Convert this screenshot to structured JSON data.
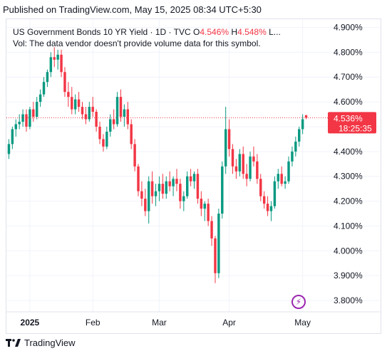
{
  "header": {
    "published": "Published on TradingView.com, May 15, 2025 08:34 UTC+5:30"
  },
  "legend": {
    "title": "US Government Bonds 10 YR Yield · 1D · TVC",
    "open_label": "O",
    "open_value": "4.546%",
    "high_label": "H",
    "high_value": "4.548%",
    "rest": "L...",
    "volume_note": "Vol: The data vendor doesn't provide volume data for this symbol."
  },
  "price_tag": {
    "price": "4.536%",
    "countdown": "18:25:35"
  },
  "footer": {
    "logo_text": "TradingView"
  },
  "colors": {
    "up": "#089981",
    "down": "#f23645",
    "grid": "#f0f3fa",
    "axis_text": "#131722",
    "price_line": "#f23645",
    "accent": "#9c27b0"
  },
  "chart_data": {
    "type": "candlestick",
    "title": "US Government Bonds 10 YR Yield · 1D · TVC",
    "ylim": [
      3.76,
      4.93
    ],
    "y_ticks": [
      "4.900%",
      "4.800%",
      "4.700%",
      "4.600%",
      "4.500%",
      "4.400%",
      "4.300%",
      "4.200%",
      "4.100%",
      "4.000%",
      "3.900%",
      "3.800%"
    ],
    "y_tick_values": [
      4.9,
      4.8,
      4.7,
      4.6,
      4.5,
      4.4,
      4.3,
      4.2,
      4.1,
      4.0,
      3.9,
      3.8
    ],
    "x_labels": [
      "2025",
      "Feb",
      "Mar",
      "Apr",
      "May"
    ],
    "x_label_indices": [
      6,
      24,
      43,
      63,
      84
    ],
    "candles": [
      [
        4.39,
        4.45,
        4.37,
        4.43
      ],
      [
        4.43,
        4.5,
        4.41,
        4.49
      ],
      [
        4.49,
        4.53,
        4.46,
        4.51
      ],
      [
        4.51,
        4.55,
        4.49,
        4.52
      ],
      [
        4.52,
        4.57,
        4.5,
        4.55
      ],
      [
        4.55,
        4.57,
        4.48,
        4.5
      ],
      [
        4.5,
        4.58,
        4.49,
        4.57
      ],
      [
        4.57,
        4.6,
        4.52,
        4.54
      ],
      [
        4.54,
        4.62,
        4.53,
        4.6
      ],
      [
        4.6,
        4.65,
        4.58,
        4.63
      ],
      [
        4.63,
        4.7,
        4.62,
        4.68
      ],
      [
        4.68,
        4.73,
        4.66,
        4.72
      ],
      [
        4.72,
        4.8,
        4.7,
        4.78
      ],
      [
        4.78,
        4.82,
        4.74,
        4.77
      ],
      [
        4.77,
        4.81,
        4.73,
        4.79
      ],
      [
        4.79,
        4.81,
        4.7,
        4.72
      ],
      [
        4.72,
        4.74,
        4.62,
        4.64
      ],
      [
        4.64,
        4.68,
        4.58,
        4.62
      ],
      [
        4.62,
        4.66,
        4.55,
        4.57
      ],
      [
        4.57,
        4.63,
        4.55,
        4.61
      ],
      [
        4.61,
        4.64,
        4.56,
        4.58
      ],
      [
        4.58,
        4.6,
        4.53,
        4.55
      ],
      [
        4.55,
        4.58,
        4.51,
        4.53
      ],
      [
        4.53,
        4.6,
        4.52,
        4.58
      ],
      [
        4.58,
        4.62,
        4.54,
        4.56
      ],
      [
        4.56,
        4.57,
        4.48,
        4.5
      ],
      [
        4.5,
        4.52,
        4.43,
        4.45
      ],
      [
        4.45,
        4.47,
        4.4,
        4.42
      ],
      [
        4.42,
        4.5,
        4.41,
        4.48
      ],
      [
        4.48,
        4.55,
        4.46,
        4.53
      ],
      [
        4.53,
        4.57,
        4.49,
        4.51
      ],
      [
        4.51,
        4.64,
        4.5,
        4.62
      ],
      [
        4.62,
        4.65,
        4.52,
        4.54
      ],
      [
        4.54,
        4.59,
        4.5,
        4.57
      ],
      [
        4.57,
        4.6,
        4.49,
        4.51
      ],
      [
        4.51,
        4.53,
        4.41,
        4.43
      ],
      [
        4.43,
        4.45,
        4.32,
        4.34
      ],
      [
        4.34,
        4.35,
        4.22,
        4.24
      ],
      [
        4.24,
        4.28,
        4.18,
        4.21
      ],
      [
        4.21,
        4.25,
        4.14,
        4.16
      ],
      [
        4.16,
        4.3,
        4.11,
        4.28
      ],
      [
        4.28,
        4.32,
        4.19,
        4.22
      ],
      [
        4.22,
        4.27,
        4.18,
        4.24
      ],
      [
        4.24,
        4.3,
        4.2,
        4.27
      ],
      [
        4.27,
        4.31,
        4.21,
        4.23
      ],
      [
        4.23,
        4.3,
        4.21,
        4.28
      ],
      [
        4.28,
        4.32,
        4.24,
        4.26
      ],
      [
        4.26,
        4.3,
        4.22,
        4.29
      ],
      [
        4.29,
        4.33,
        4.24,
        4.27
      ],
      [
        4.27,
        4.29,
        4.17,
        4.2
      ],
      [
        4.2,
        4.24,
        4.16,
        4.22
      ],
      [
        4.22,
        4.32,
        4.21,
        4.3
      ],
      [
        4.3,
        4.33,
        4.26,
        4.28
      ],
      [
        4.28,
        4.32,
        4.25,
        4.31
      ],
      [
        4.31,
        4.33,
        4.19,
        4.21
      ],
      [
        4.21,
        4.24,
        4.14,
        4.17
      ],
      [
        4.17,
        4.2,
        4.12,
        4.19
      ],
      [
        4.19,
        4.21,
        4.1,
        4.12
      ],
      [
        4.12,
        4.14,
        4.02,
        4.05
      ],
      [
        4.05,
        4.06,
        3.87,
        3.91
      ],
      [
        3.91,
        4.17,
        3.89,
        4.15
      ],
      [
        4.15,
        4.36,
        4.13,
        4.34
      ],
      [
        4.34,
        4.58,
        4.31,
        4.49
      ],
      [
        4.49,
        4.53,
        4.38,
        4.41
      ],
      [
        4.41,
        4.43,
        4.31,
        4.34
      ],
      [
        4.34,
        4.37,
        4.29,
        4.32
      ],
      [
        4.32,
        4.41,
        4.3,
        4.39
      ],
      [
        4.39,
        4.42,
        4.29,
        4.31
      ],
      [
        4.31,
        4.35,
        4.26,
        4.29
      ],
      [
        4.29,
        4.4,
        4.28,
        4.38
      ],
      [
        4.38,
        4.42,
        4.34,
        4.36
      ],
      [
        4.36,
        4.39,
        4.27,
        4.29
      ],
      [
        4.29,
        4.31,
        4.2,
        4.22
      ],
      [
        4.22,
        4.24,
        4.17,
        4.19
      ],
      [
        4.19,
        4.22,
        4.14,
        4.16
      ],
      [
        4.16,
        4.2,
        4.12,
        4.18
      ],
      [
        4.18,
        4.3,
        4.17,
        4.28
      ],
      [
        4.28,
        4.33,
        4.25,
        4.31
      ],
      [
        4.31,
        4.34,
        4.26,
        4.27
      ],
      [
        4.27,
        4.3,
        4.25,
        4.28
      ],
      [
        4.28,
        4.38,
        4.27,
        4.36
      ],
      [
        4.36,
        4.42,
        4.34,
        4.4
      ],
      [
        4.4,
        4.46,
        4.38,
        4.44
      ],
      [
        4.44,
        4.5,
        4.42,
        4.49
      ],
      [
        4.49,
        4.55,
        4.47,
        4.53
      ],
      [
        4.546,
        4.548,
        4.53,
        4.536
      ]
    ],
    "last_price": 4.536
  }
}
